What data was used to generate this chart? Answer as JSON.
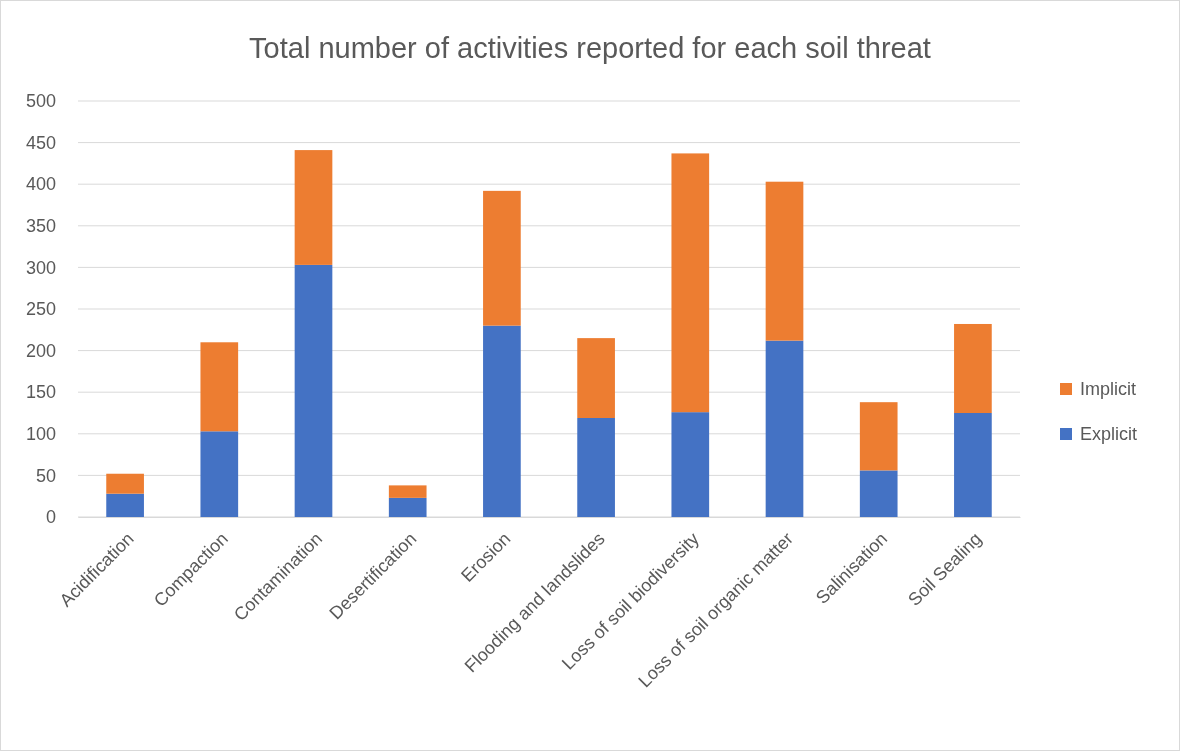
{
  "chart_data": {
    "type": "bar",
    "title": "Total number of activities reported for each soil threat",
    "categories": [
      "Acidification",
      "Compaction",
      "Contamination",
      "Desertification",
      "Erosion",
      "Flooding and landslides",
      "Loss of soil biodiversity",
      "Loss of soil organic matter",
      "Salinisation",
      "Soil Sealing"
    ],
    "series": [
      {
        "name": "Explicit",
        "color": "#4472c4",
        "values": [
          28,
          103,
          303,
          23,
          230,
          119,
          126,
          212,
          56,
          125
        ]
      },
      {
        "name": "Implicit",
        "color": "#ed7d31",
        "values": [
          24,
          107,
          138,
          15,
          162,
          96,
          311,
          191,
          82,
          107
        ]
      }
    ],
    "stacked": true,
    "ylim": [
      0,
      500
    ],
    "yticks": [
      0,
      50,
      100,
      150,
      200,
      250,
      300,
      350,
      400,
      450,
      500
    ],
    "grid": "y",
    "legend": "right"
  }
}
